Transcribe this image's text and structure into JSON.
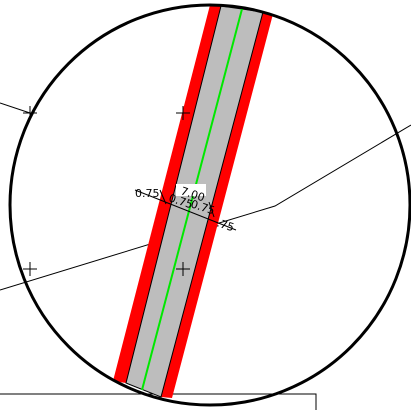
{
  "colors": {
    "background": "#ffffff",
    "circle": "#000000",
    "road_fill": "#bdbdbd",
    "edge_band": "#ff0000",
    "centerline": "#00e800",
    "linework": "#000000"
  },
  "dimensions": {
    "left_shoulder": "0.75",
    "main_width": "7.00",
    "inner_left": "0.75",
    "inner_right": "0.75",
    "right_shoulder": ".75"
  },
  "icons": {
    "cross_marker": "plus-icon"
  }
}
